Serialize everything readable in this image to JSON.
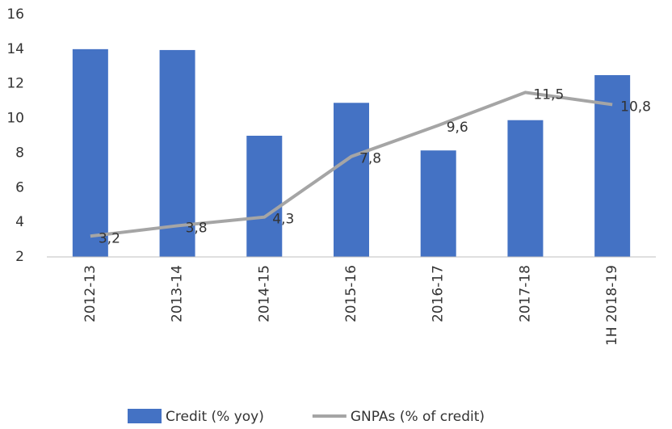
{
  "chart_data": {
    "type": "bar-line",
    "categories": [
      "2012-13",
      "2013-14",
      "2014-15",
      "2015-16",
      "2016-17",
      "2017-18",
      "1H 2018-19"
    ],
    "series": [
      {
        "name": "Credit (% yoy)",
        "type": "bar",
        "color": "#4472c4",
        "values": [
          14.0,
          13.95,
          9.0,
          10.9,
          8.15,
          9.9,
          12.5
        ]
      },
      {
        "name": "GNPAs (% of credit)",
        "type": "line",
        "color": "#a5a5a5",
        "values": [
          3.2,
          3.8,
          4.3,
          7.8,
          9.6,
          11.5,
          10.8
        ],
        "value_labels": [
          "3,2",
          "3,8",
          "4,3",
          "7,8",
          "9,6",
          "11,5",
          "10,8"
        ]
      }
    ],
    "ylim": [
      2,
      16
    ],
    "yticks": [
      2,
      4,
      6,
      8,
      10,
      12,
      14,
      16
    ],
    "grid": false,
    "legend": "bottom"
  }
}
